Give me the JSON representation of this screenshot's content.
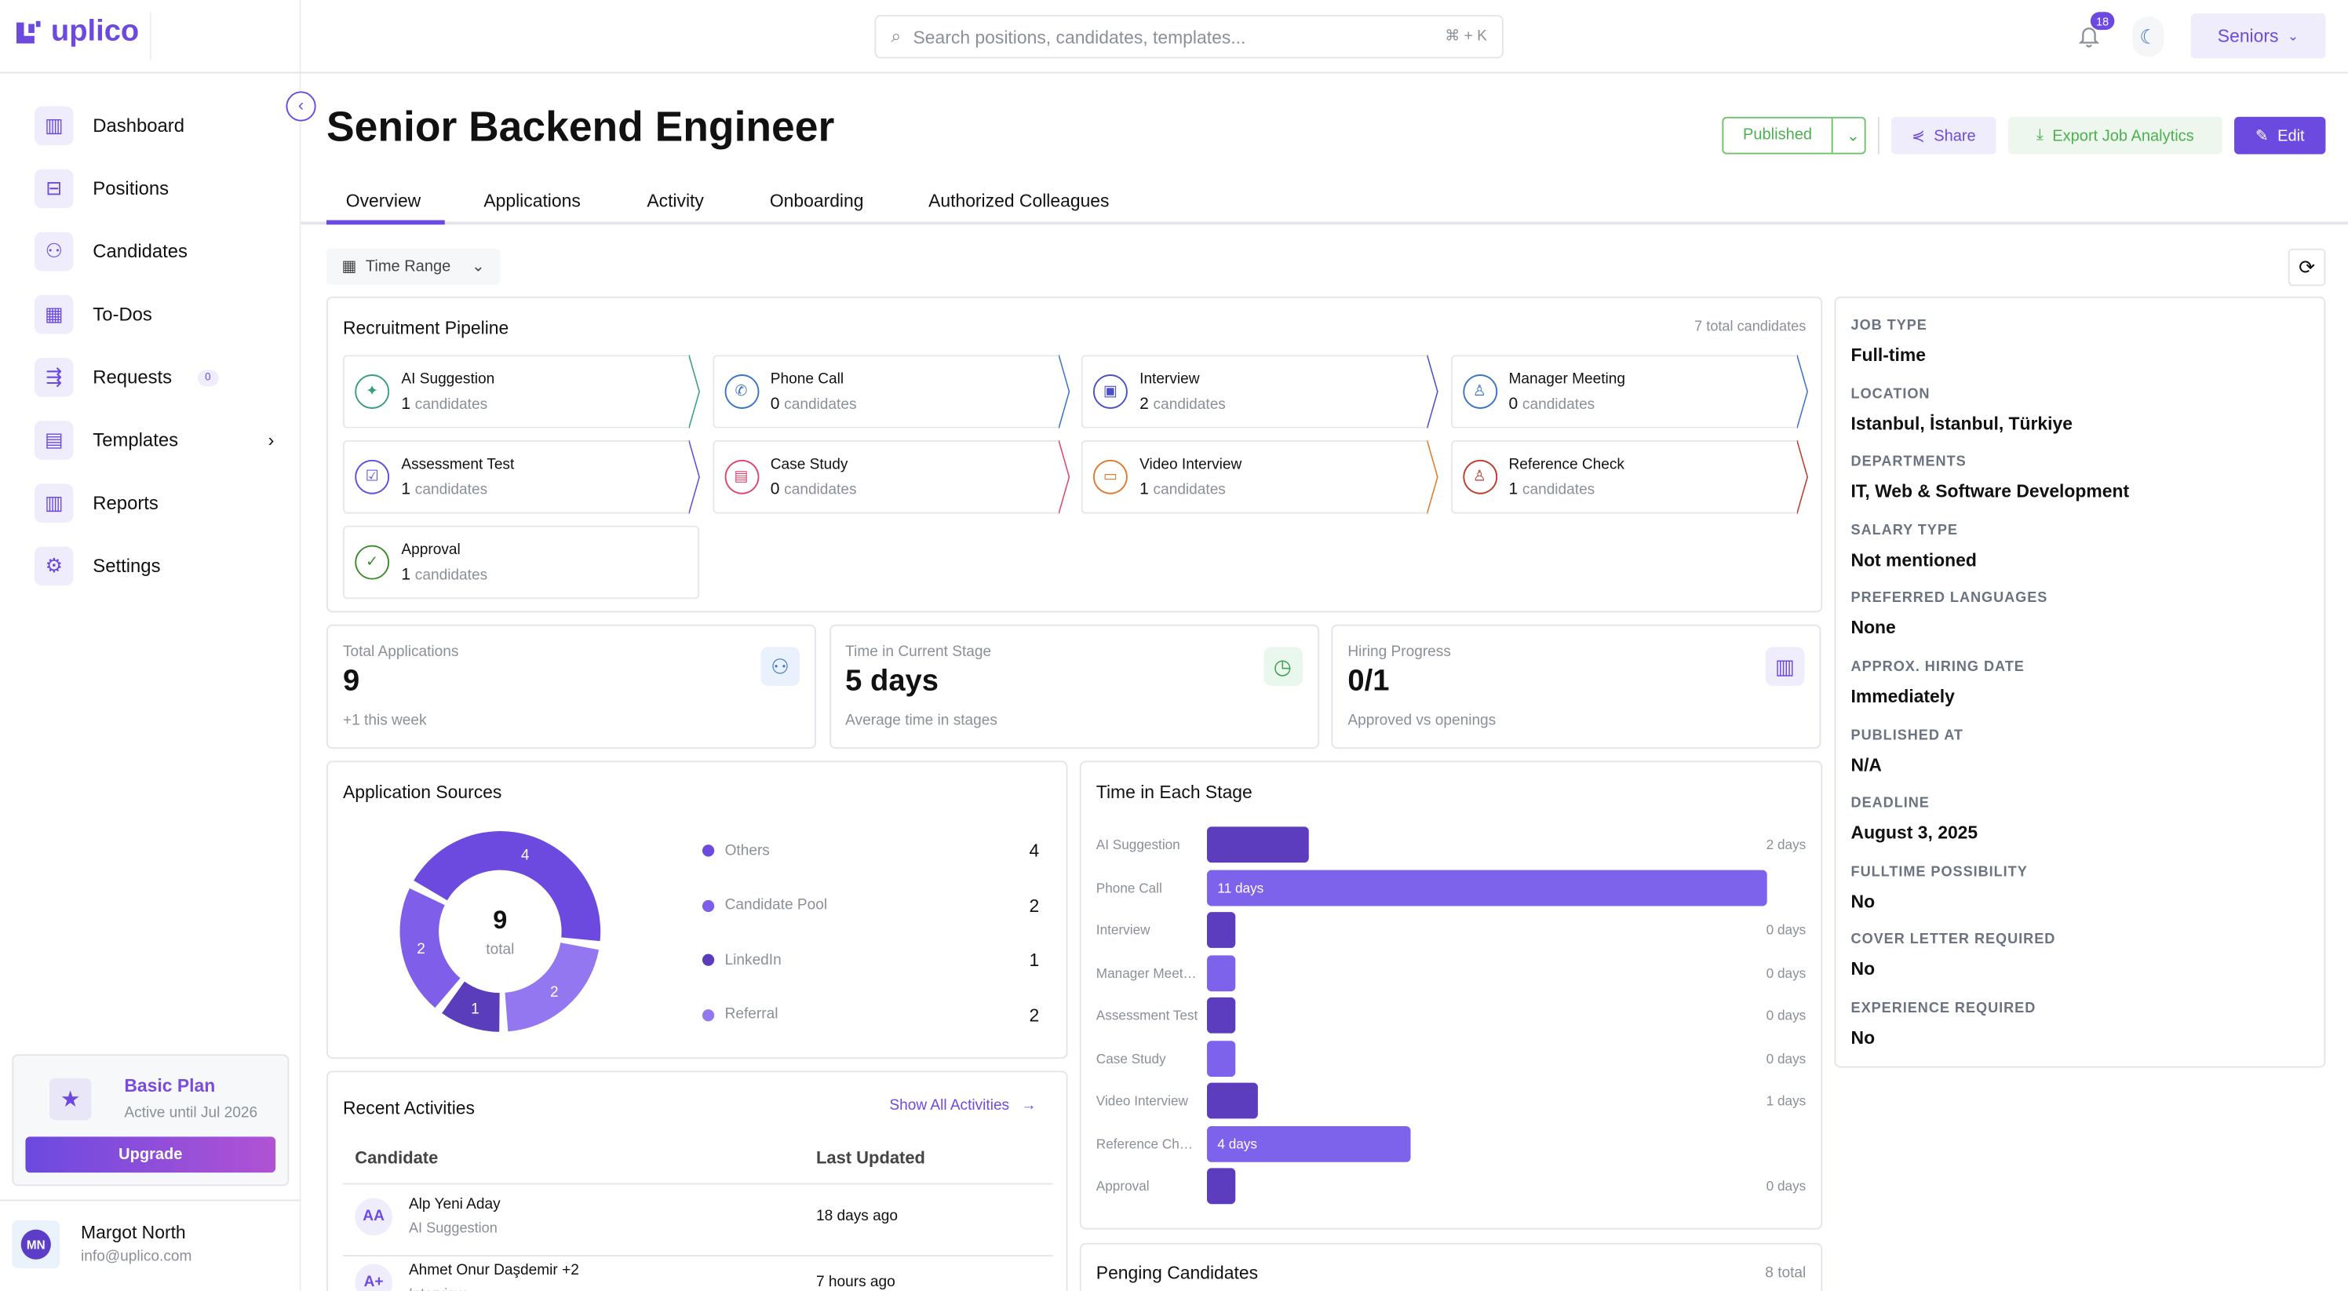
{
  "brand": {
    "name": "uplico",
    "accent": "#6c4ae0"
  },
  "sidebar": {
    "items": [
      {
        "label": "Dashboard",
        "icon": "bar-chart-icon"
      },
      {
        "label": "Positions",
        "icon": "briefcase-icon"
      },
      {
        "label": "Candidates",
        "icon": "users-icon"
      },
      {
        "label": "To-Dos",
        "icon": "calendar-icon"
      },
      {
        "label": "Requests",
        "icon": "requests-icon",
        "badge": "0"
      },
      {
        "label": "Templates",
        "icon": "templates-icon"
      },
      {
        "label": "Reports",
        "icon": "reports-icon"
      },
      {
        "label": "Settings",
        "icon": "gear-icon"
      }
    ],
    "plan": {
      "name": "Basic Plan",
      "status": "Active until Jul 2026",
      "upgrade": "Upgrade"
    },
    "user": {
      "initials": "MN",
      "name": "Margot North",
      "email": "info@uplico.com"
    }
  },
  "header": {
    "search_placeholder": "Search positions, candidates, templates...",
    "shortcut": "⌘ + K",
    "notifications": "18",
    "workspace": "Seniors"
  },
  "page": {
    "title": "Senior Backend Engineer",
    "status": "Published",
    "share": "Share",
    "export": "Export Job Analytics",
    "edit": "Edit",
    "tabs": [
      "Overview",
      "Applications",
      "Activity",
      "Onboarding",
      "Authorized Colleagues"
    ],
    "time_range": "Time Range"
  },
  "pipeline": {
    "title": "Recruitment Pipeline",
    "total": "7 total candidates",
    "unit": "candidates",
    "stages": [
      {
        "name": "AI Suggestion",
        "count": "1",
        "color": "#3a9e7a",
        "glyph": "✦"
      },
      {
        "name": "Phone Call",
        "count": "0",
        "color": "#3b74c4",
        "glyph": "✆"
      },
      {
        "name": "Interview",
        "count": "2",
        "color": "#4b4fc9",
        "glyph": "▣"
      },
      {
        "name": "Manager Meeting",
        "count": "0",
        "color": "#3b74c4",
        "glyph": "♙"
      },
      {
        "name": "Assessment Test",
        "count": "1",
        "color": "#5b4ee0",
        "glyph": "☑"
      },
      {
        "name": "Case Study",
        "count": "0",
        "color": "#e0446a",
        "glyph": "▤"
      },
      {
        "name": "Video Interview",
        "count": "1",
        "color": "#e07a2a",
        "glyph": "▭"
      },
      {
        "name": "Reference Check",
        "count": "1",
        "color": "#c0392b",
        "glyph": "♙"
      },
      {
        "name": "Approval",
        "count": "1",
        "color": "#3a8a2a",
        "glyph": "✓"
      }
    ]
  },
  "stats": [
    {
      "label": "Total Applications",
      "value": "9",
      "sub": "+1 this week",
      "color": "#3b74c4",
      "bg": "#e8f1fc"
    },
    {
      "label": "Time in Current Stage",
      "value": "5 days",
      "sub": "Average time in stages",
      "color": "#3aa04a",
      "bg": "#eaf7ec"
    },
    {
      "label": "Hiring Progress",
      "value": "0/1",
      "sub": "Approved vs openings",
      "color": "#6c4ae0",
      "bg": "#efedfc"
    }
  ],
  "details": [
    {
      "label": "JOB TYPE",
      "value": "Full-time"
    },
    {
      "label": "LOCATION",
      "value": "Istanbul, İstanbul, Türkiye"
    },
    {
      "label": "DEPARTMENTS",
      "value": "IT, Web & Software Development"
    },
    {
      "label": "SALARY TYPE",
      "value": "Not mentioned"
    },
    {
      "label": "PREFERRED LANGUAGES",
      "value": "None"
    },
    {
      "label": "APPROX. HIRING DATE",
      "value": "Immediately"
    },
    {
      "label": "PUBLISHED AT",
      "value": "N/A"
    },
    {
      "label": "DEADLINE",
      "value": "August 3, 2025"
    },
    {
      "label": "FULLTIME POSSIBILITY",
      "value": "No"
    },
    {
      "label": "COVER LETTER REQUIRED",
      "value": "No"
    },
    {
      "label": "EXPERIENCE REQUIRED",
      "value": "No"
    }
  ],
  "activities": {
    "title": "Recent Activities",
    "show_all": "Show All Activities",
    "col_candidate": "Candidate",
    "col_updated": "Last Updated",
    "rows": [
      {
        "initials": "AA",
        "name": "Alp Yeni Aday",
        "stage": "AI Suggestion",
        "updated": "18 days ago"
      },
      {
        "initials": "A+",
        "name": "Ahmet Onur Daşdemir +2",
        "stage": "Interview",
        "updated": "7 hours ago"
      }
    ]
  },
  "pending": {
    "title": "Penging Candidates",
    "total": "8 total"
  },
  "chart_data": [
    {
      "type": "pie",
      "title": "Application Sources",
      "center_value": "9",
      "center_label": "total",
      "labels": [
        "Others",
        "Candidate Pool",
        "LinkedIn",
        "Referral"
      ],
      "values": [
        4,
        2,
        1,
        2
      ],
      "colors": [
        "#6c4ae0",
        "#7f5fea",
        "#5a3dbb",
        "#9377f0"
      ]
    },
    {
      "type": "bar",
      "title": "Time in Each Stage",
      "unit": "days",
      "categories": [
        "AI Suggestion",
        "Phone Call",
        "Interview",
        "Manager Meeting",
        "Assessment Test",
        "Case Study",
        "Video Interview",
        "Reference Check",
        "Approval"
      ],
      "values": [
        2,
        11,
        0,
        0,
        0,
        0,
        1,
        4,
        0
      ],
      "value_labels": [
        "2 days",
        "11 days",
        "0 days",
        "0 days",
        "0 days",
        "0 days",
        "1 days",
        "4 days",
        "0 days"
      ]
    }
  ]
}
